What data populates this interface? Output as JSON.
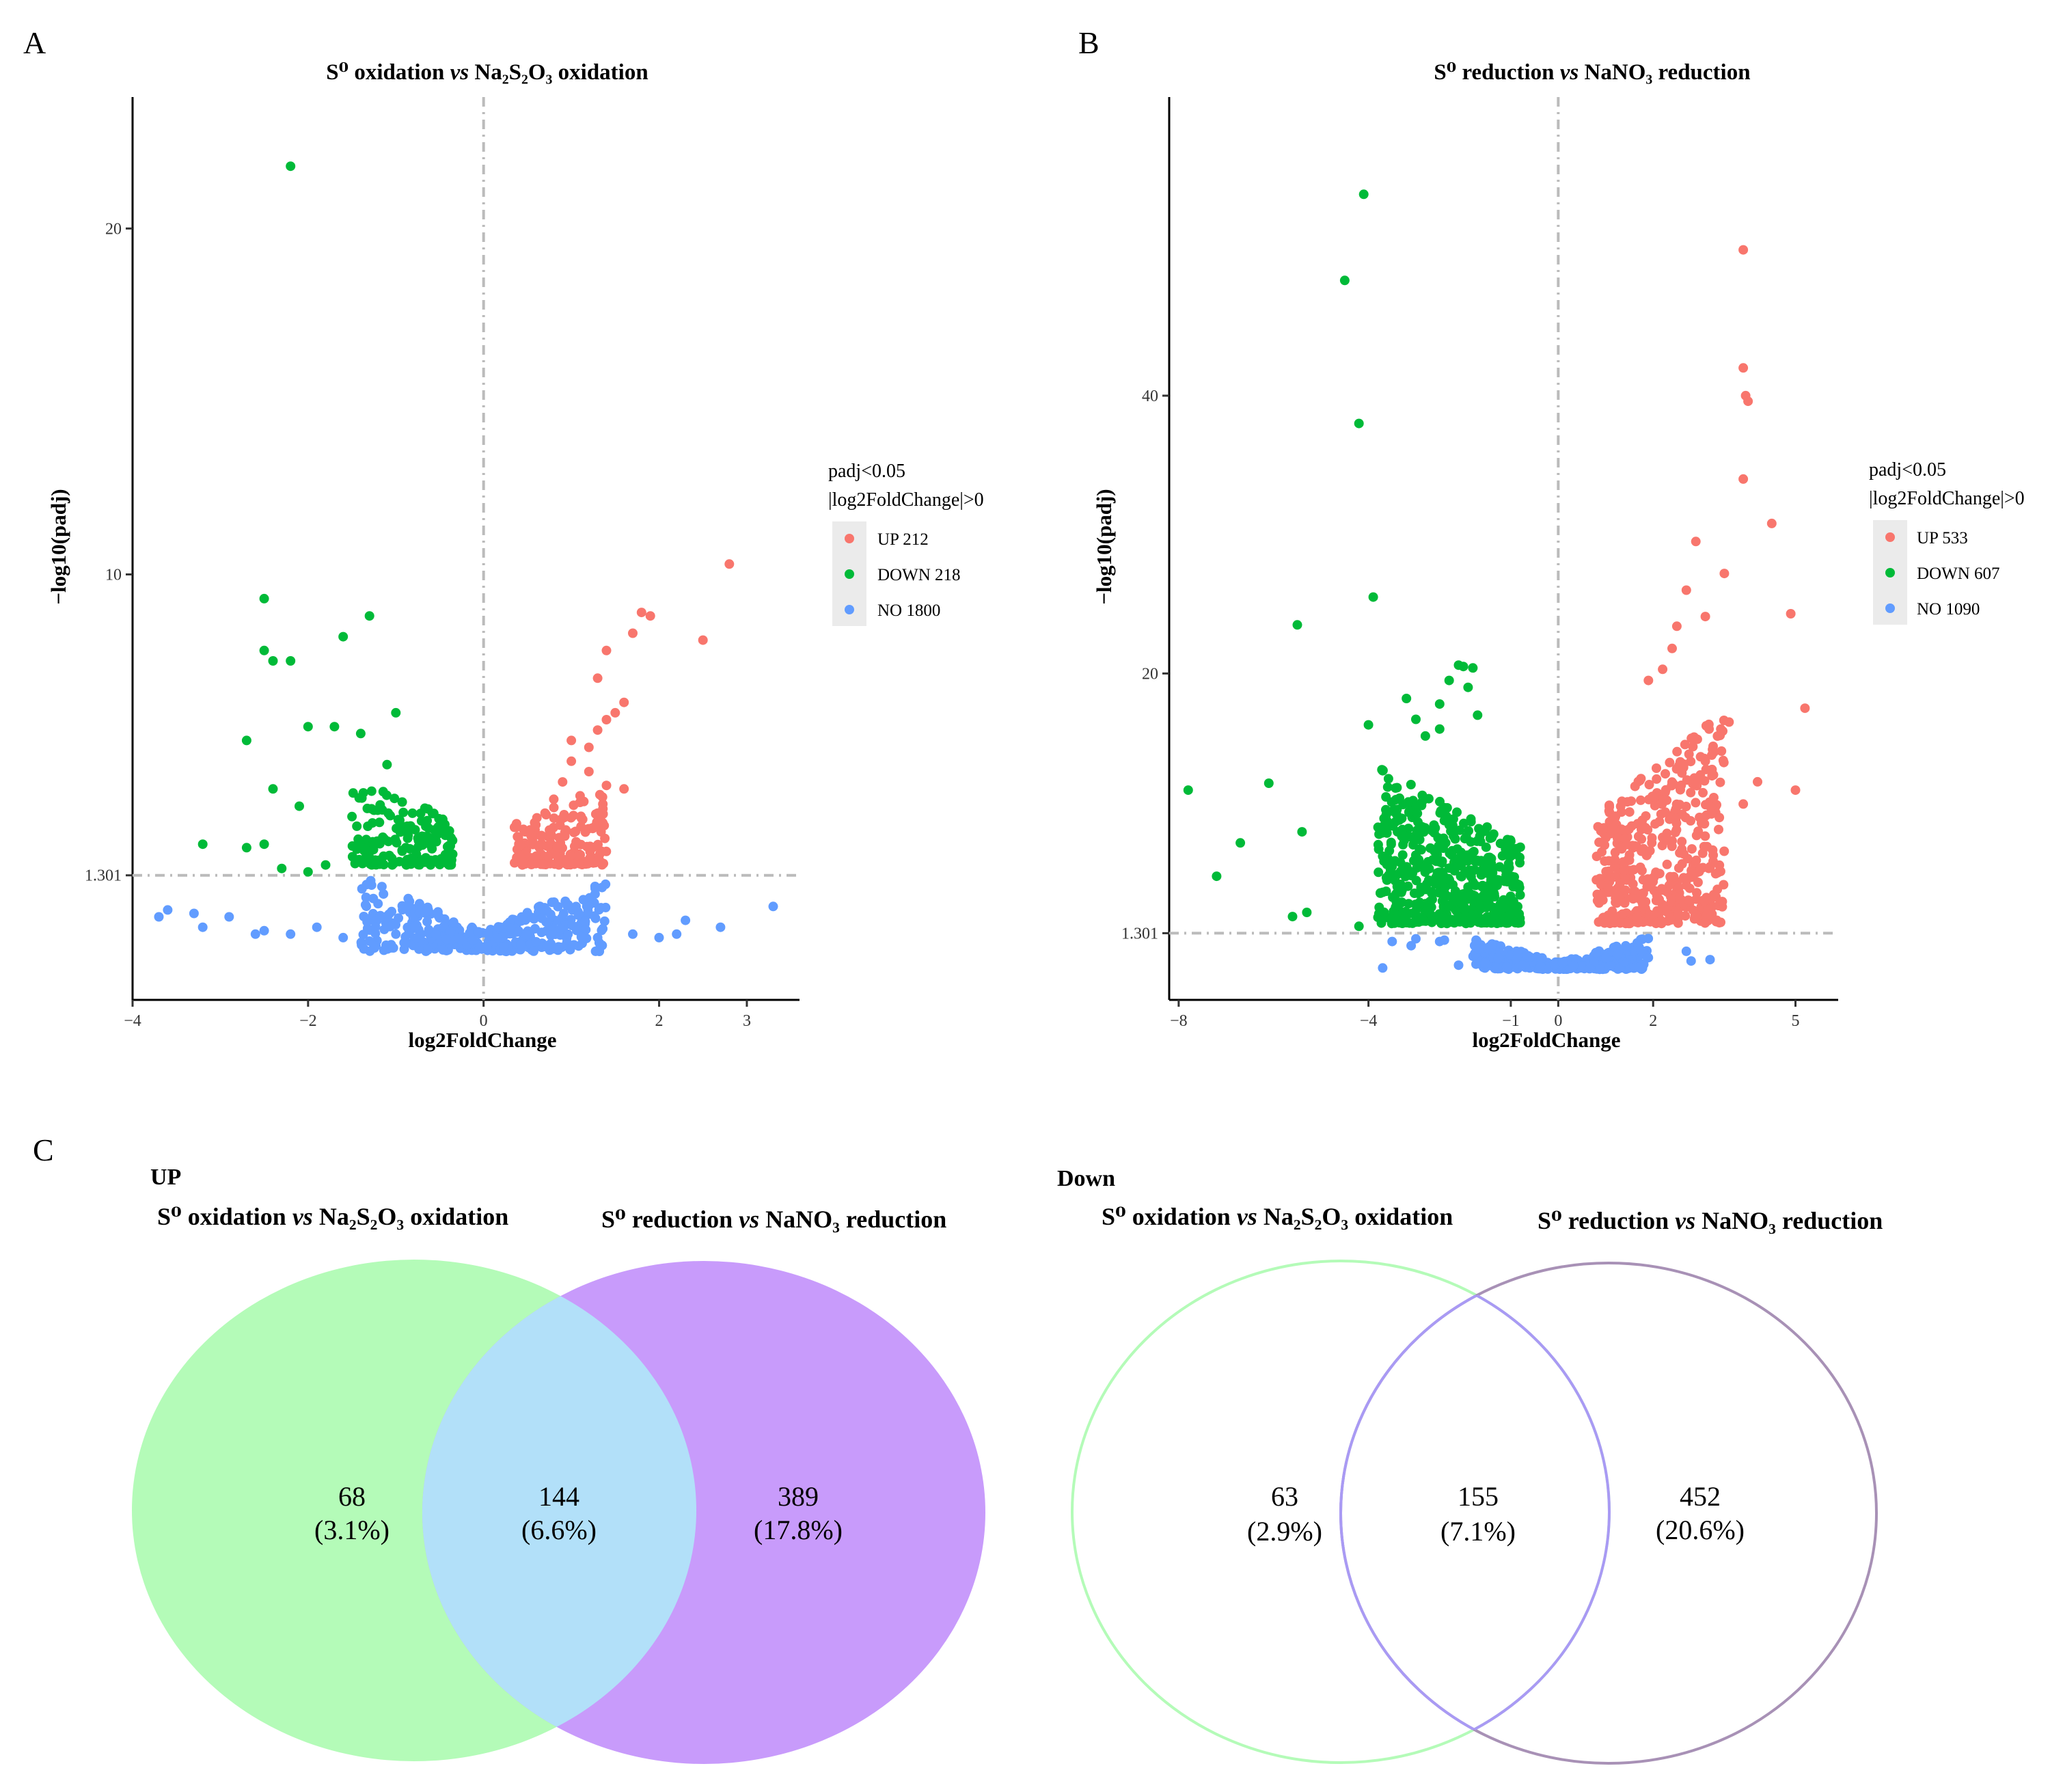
{
  "panels": {
    "A": "A",
    "B": "B",
    "C": "C"
  },
  "chart_data": [
    {
      "type": "scatter",
      "title": "S⁰ oxidation vs Na₂S₂O₃ oxidation",
      "title_parts": {
        "pre": "S⁰ oxidation ",
        "vs": "vs",
        "post": " Na₂S₂O₃ oxidation"
      },
      "xlabel": "log2FoldChange",
      "ylabel": "−log10(padj)",
      "xlim": [
        -4,
        3.6
      ],
      "ylim": [
        -2.3,
        23.8
      ],
      "xticks": [
        -4,
        -2,
        0,
        2,
        3
      ],
      "xtick_labels": [
        "−4",
        "−2",
        "0",
        "2",
        "3"
      ],
      "yticks": [
        1.301,
        10,
        20
      ],
      "ytick_labels": [
        "1.301",
        "10",
        "20"
      ],
      "threshold_y": 1.301,
      "threshold_x": 0,
      "legend": {
        "title_line1": "padj<0.05",
        "title_line2": "|log2FoldChange|>0",
        "items": [
          {
            "label": "UP 212",
            "color": "#f8766d"
          },
          {
            "label": "DOWN 218",
            "color": "#00ba38"
          },
          {
            "label": "NO 1800",
            "color": "#619cff"
          }
        ]
      },
      "series": [
        {
          "name": "UP",
          "color": "#f8766d",
          "points": [
            [
              2.8,
              10.3
            ],
            [
              2.5,
              8.1
            ],
            [
              1.7,
              8.3
            ],
            [
              1.8,
              8.9
            ],
            [
              1.9,
              8.8
            ],
            [
              1.4,
              7.8
            ],
            [
              1.3,
              7.0
            ],
            [
              1.6,
              6.3
            ],
            [
              1.5,
              6.0
            ],
            [
              1.4,
              5.8
            ],
            [
              1.3,
              5.5
            ],
            [
              1.0,
              5.2
            ],
            [
              1.2,
              4.3
            ],
            [
              1.6,
              3.8
            ],
            [
              0.9,
              4.0
            ],
            [
              1.1,
              3.6
            ],
            [
              1.3,
              3.1
            ],
            [
              0.7,
              3.1
            ],
            [
              0.8,
              3.5
            ],
            [
              1.4,
              3.9
            ],
            [
              1.0,
              4.6
            ],
            [
              1.2,
              5.0
            ]
          ]
        },
        {
          "name": "DOWN",
          "color": "#00ba38",
          "points": [
            [
              -2.2,
              21.8
            ],
            [
              -2.5,
              9.3
            ],
            [
              -1.3,
              8.8
            ],
            [
              -1.6,
              8.2
            ],
            [
              -2.5,
              7.8
            ],
            [
              -2.4,
              7.5
            ],
            [
              -2.2,
              7.5
            ],
            [
              -1.0,
              6.0
            ],
            [
              -2.7,
              5.2
            ],
            [
              -2.0,
              5.6
            ],
            [
              -1.7,
              5.6
            ],
            [
              -1.4,
              5.4
            ],
            [
              -3.2,
              2.2
            ],
            [
              -2.7,
              2.1
            ],
            [
              -2.5,
              2.2
            ],
            [
              -2.3,
              1.5
            ],
            [
              -2.0,
              1.4
            ],
            [
              -1.8,
              1.6
            ],
            [
              -2.4,
              3.8
            ],
            [
              -2.1,
              3.3
            ],
            [
              -1.5,
              3.0
            ],
            [
              -1.1,
              4.5
            ]
          ]
        },
        {
          "name": "NO",
          "color": "#619cff",
          "points": [
            [
              -3.7,
              0.1
            ],
            [
              -3.6,
              0.3
            ],
            [
              -3.3,
              0.2
            ],
            [
              -3.2,
              -0.2
            ],
            [
              -2.9,
              0.1
            ],
            [
              -2.6,
              -0.4
            ],
            [
              -2.5,
              -0.3
            ],
            [
              -2.2,
              -0.4
            ],
            [
              -1.9,
              -0.2
            ],
            [
              -1.6,
              -0.5
            ],
            [
              -1.3,
              -0.6
            ],
            [
              -1.0,
              -0.4
            ],
            [
              1.3,
              -0.5
            ],
            [
              1.7,
              -0.4
            ],
            [
              2.0,
              -0.5
            ],
            [
              2.2,
              -0.4
            ],
            [
              2.3,
              0.0
            ],
            [
              2.7,
              -0.2
            ],
            [
              3.3,
              0.4
            ]
          ]
        }
      ],
      "clouds": [
        {
          "series": "DOWN",
          "color": "#00ba38",
          "x_from": -1.5,
          "x_to": -0.35,
          "y_base": 1.6,
          "y_top": 4.2,
          "count": 170
        },
        {
          "series": "UP",
          "color": "#f8766d",
          "x_from": 0.35,
          "x_to": 1.4,
          "y_base": 1.6,
          "y_top": 3.9,
          "count": 170
        },
        {
          "series": "NO",
          "color": "#619cff",
          "x_from": -1.4,
          "x_to": 1.4,
          "y_base": -0.9,
          "y_top": 1.3,
          "count": 380
        }
      ]
    },
    {
      "type": "scatter",
      "title": "S⁰ reduction vs NaNO₃ reduction",
      "title_parts": {
        "pre": "S⁰ reduction ",
        "vs": "vs",
        "post": " NaNO₃ reduction"
      },
      "xlabel": "log2FoldChange",
      "ylabel": "−log10(padj)",
      "xlim": [
        -8.2,
        5.9
      ],
      "ylim": [
        -3.5,
        61.5
      ],
      "xticks": [
        -8,
        -4,
        -1,
        0,
        2,
        5
      ],
      "xtick_labels": [
        "−8",
        "−4",
        "−1",
        "0",
        "2",
        "5"
      ],
      "yticks": [
        1.301,
        20,
        40
      ],
      "ytick_labels": [
        "1.301",
        "20",
        "40"
      ],
      "threshold_y": 1.301,
      "threshold_x": 0,
      "legend": {
        "title_line1": "padj<0.05",
        "title_line2": "|log2FoldChange|>0",
        "items": [
          {
            "label": "UP 533",
            "color": "#f8766d"
          },
          {
            "label": "DOWN 607",
            "color": "#00ba38"
          },
          {
            "label": "NO 1090",
            "color": "#619cff"
          }
        ]
      },
      "series": [
        {
          "name": "UP",
          "color": "#f8766d",
          "points": [
            [
              3.9,
              50.5
            ],
            [
              3.9,
              42
            ],
            [
              3.95,
              40
            ],
            [
              4.0,
              39.6
            ],
            [
              3.9,
              34
            ],
            [
              4.5,
              30.8
            ],
            [
              2.9,
              29.5
            ],
            [
              3.1,
              24.1
            ],
            [
              4.9,
              24.3
            ],
            [
              2.7,
              26
            ],
            [
              3.5,
              27.2
            ],
            [
              2.5,
              23.4
            ],
            [
              2.4,
              21.8
            ],
            [
              2.2,
              20.3
            ],
            [
              1.9,
              19.5
            ],
            [
              5.2,
              17.5
            ],
            [
              4.2,
              12.2
            ],
            [
              5.0,
              11.6
            ],
            [
              3.9,
              10.6
            ],
            [
              3.6,
              16.5
            ],
            [
              3.0,
              14.0
            ]
          ]
        },
        {
          "name": "DOWN",
          "color": "#00ba38",
          "points": [
            [
              -4.1,
              54.5
            ],
            [
              -4.5,
              48.3
            ],
            [
              -4.2,
              38
            ],
            [
              -3.9,
              25.5
            ],
            [
              -5.5,
              23.5
            ],
            [
              -7.8,
              11.6
            ],
            [
              -6.1,
              12.1
            ],
            [
              -7.2,
              5.4
            ],
            [
              -5.4,
              8.6
            ],
            [
              -6.7,
              7.8
            ],
            [
              -5.6,
              2.5
            ],
            [
              -5.3,
              2.8
            ],
            [
              -4.2,
              1.8
            ],
            [
              -4.0,
              16.3
            ],
            [
              -3.7,
              13.0
            ],
            [
              -3.0,
              16.7
            ],
            [
              -2.8,
              15.5
            ],
            [
              -2.5,
              16.0
            ],
            [
              -3.2,
              18.2
            ],
            [
              -2.3,
              19.5
            ],
            [
              -2.1,
              20.6
            ],
            [
              -2.0,
              20.5
            ],
            [
              -1.8,
              20.4
            ],
            [
              -1.9,
              19.0
            ],
            [
              -1.7,
              17.0
            ],
            [
              -2.5,
              17.8
            ]
          ]
        },
        {
          "name": "NO",
          "color": "#619cff",
          "points": [
            [
              -3.1,
              0.4
            ],
            [
              -3.0,
              0.9
            ],
            [
              -2.5,
              0.7
            ],
            [
              -2.1,
              -1.0
            ],
            [
              -2.4,
              0.8
            ],
            [
              -3.7,
              -1.2
            ],
            [
              -3.5,
              0.7
            ],
            [
              2.8,
              -0.7
            ],
            [
              3.2,
              -0.6
            ],
            [
              2.7,
              0.0
            ]
          ]
        }
      ],
      "clouds": [
        {
          "series": "DOWN",
          "color": "#00ba38",
          "x_from": -3.8,
          "x_to": -0.8,
          "y_base": 2.0,
          "y_top": 13.5,
          "count": 540
        },
        {
          "series": "UP",
          "color": "#f8766d",
          "x_from": 0.8,
          "x_to": 3.5,
          "y_base": 2.0,
          "y_top": 17.5,
          "count": 470
        },
        {
          "series": "NO",
          "color": "#619cff",
          "x_from": -1.8,
          "x_to": 1.9,
          "y_base": -1.3,
          "y_top": 1.0,
          "count": 330
        }
      ]
    }
  ],
  "venn": {
    "up": {
      "heading": "UP",
      "set1": {
        "pre": "S⁰ oxidation ",
        "vs": "vs",
        "post": " Na₂S₂O₃ oxidation"
      },
      "set2": {
        "pre": "S⁰ reduction ",
        "vs": "vs",
        "post": " NaNO₃ reduction"
      },
      "left": {
        "count": "68",
        "pct": "(3.1%)"
      },
      "overlap": {
        "count": "144",
        "pct": "(6.6%)"
      },
      "right": {
        "count": "389",
        "pct": "(17.8%)"
      },
      "colors": {
        "left": "#b4fbb8",
        "right": "#c89bfb",
        "overlap": "#b2e0f9"
      }
    },
    "down": {
      "heading": "Down",
      "set1": {
        "pre": "S⁰ oxidation ",
        "vs": "vs",
        "post": " Na₂S₂O₃ oxidation"
      },
      "set2": {
        "pre": "S⁰ reduction ",
        "vs": "vs",
        "post": " NaNO₃ reduction"
      },
      "left": {
        "count": "63",
        "pct": "(2.9%)"
      },
      "overlap": {
        "count": "155",
        "pct": "(7.1%)"
      },
      "right": {
        "count": "452",
        "pct": "(20.6%)"
      },
      "colors": {
        "left": "#b4fbb8",
        "right": "#a891b6",
        "overlap": "#a99af4"
      }
    }
  }
}
